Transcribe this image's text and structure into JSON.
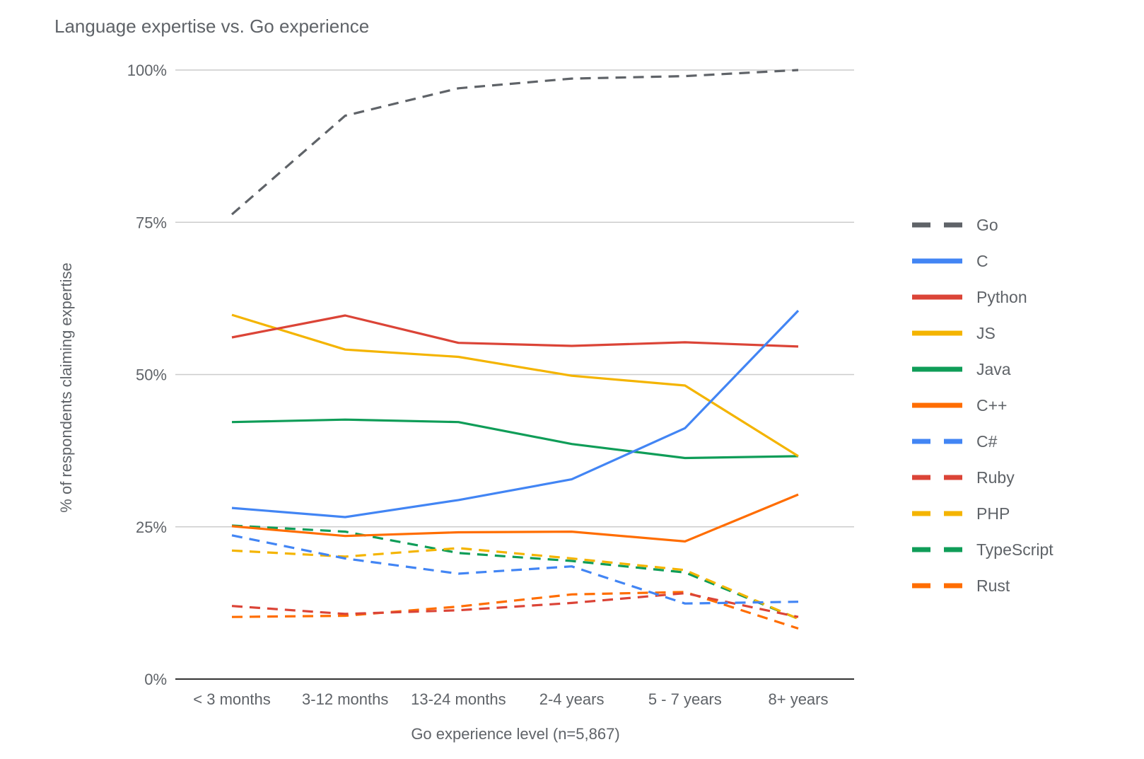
{
  "chart_data": {
    "type": "line",
    "title": "Language expertise vs. Go experience",
    "xlabel": "Go experience level (n=5,867)",
    "ylabel": "% of respondents claiming expertise",
    "categories": [
      "< 3 months",
      "3-12 months",
      "13-24 months",
      "2-4 years",
      "5 - 7 years",
      "8+ years"
    ],
    "ylim": [
      0,
      100
    ],
    "yticks": [
      {
        "value": 0,
        "label": "0%"
      },
      {
        "value": 25,
        "label": "25%"
      },
      {
        "value": 50,
        "label": "50%"
      },
      {
        "value": 75,
        "label": "75%"
      },
      {
        "value": 100,
        "label": "100%"
      }
    ],
    "grid": true,
    "legend_position": "right",
    "series": [
      {
        "name": "Go",
        "color": "#5f6368",
        "dashed": true,
        "values": [
          76.3,
          92.5,
          97.0,
          98.6,
          99.0,
          100.0
        ]
      },
      {
        "name": "C",
        "color": "#4285f4",
        "dashed": false,
        "values": [
          28.1,
          26.6,
          29.4,
          32.8,
          41.2,
          60.5
        ]
      },
      {
        "name": "Python",
        "color": "#db4437",
        "dashed": false,
        "values": [
          56.1,
          59.7,
          55.2,
          54.7,
          55.3,
          54.6
        ]
      },
      {
        "name": "JS",
        "color": "#f4b400",
        "dashed": false,
        "values": [
          59.8,
          54.1,
          52.9,
          49.8,
          48.2,
          36.6
        ]
      },
      {
        "name": "Java",
        "color": "#0f9d58",
        "dashed": false,
        "values": [
          42.2,
          42.6,
          42.2,
          38.6,
          36.3,
          36.6
        ]
      },
      {
        "name": "C++",
        "color": "#ff6d00",
        "dashed": false,
        "values": [
          25.1,
          23.5,
          24.1,
          24.2,
          22.6,
          30.3
        ]
      },
      {
        "name": "C#",
        "color": "#4285f4",
        "dashed": true,
        "values": [
          23.6,
          19.8,
          17.3,
          18.5,
          12.4,
          12.7
        ]
      },
      {
        "name": "Ruby",
        "color": "#db4437",
        "dashed": true,
        "values": [
          12.0,
          10.7,
          11.3,
          12.5,
          14.1,
          10.2
        ]
      },
      {
        "name": "PHP",
        "color": "#f4b400",
        "dashed": true,
        "values": [
          21.1,
          20.1,
          21.5,
          19.8,
          17.9,
          9.9
        ]
      },
      {
        "name": "TypeScript",
        "color": "#0f9d58",
        "dashed": true,
        "values": [
          25.2,
          24.2,
          20.7,
          19.4,
          17.5,
          9.9
        ]
      },
      {
        "name": "Rust",
        "color": "#ff6d00",
        "dashed": true,
        "values": [
          10.2,
          10.4,
          11.9,
          13.9,
          14.3,
          8.3
        ]
      }
    ]
  }
}
